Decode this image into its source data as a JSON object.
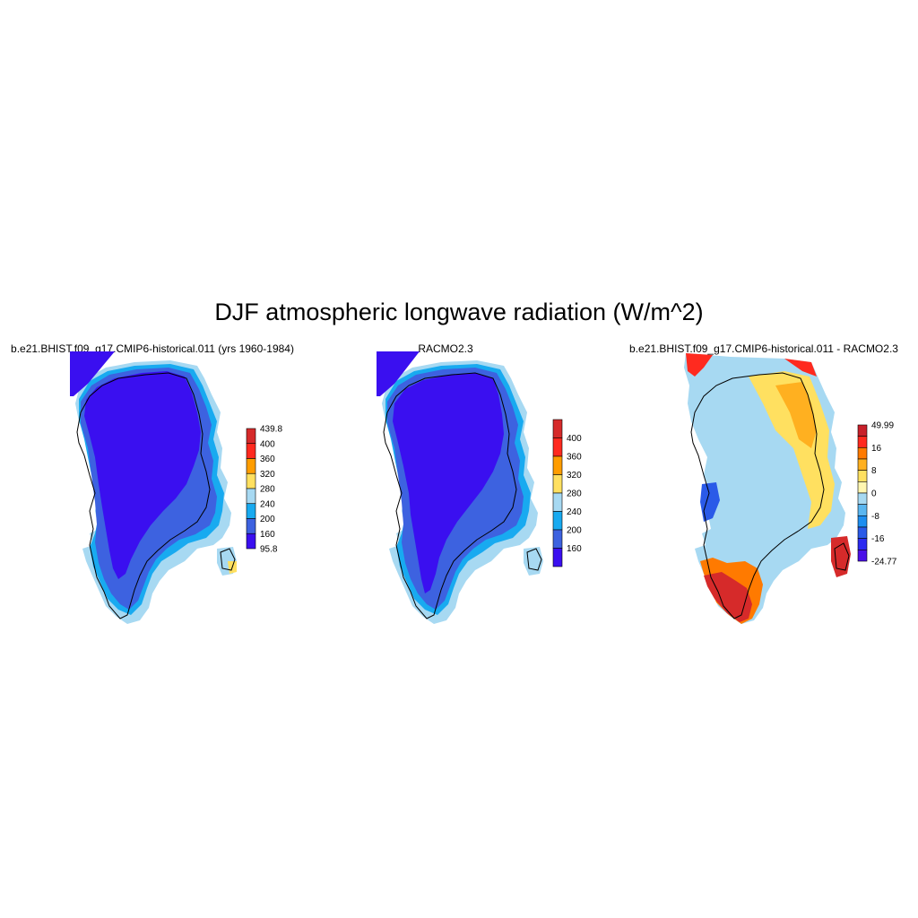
{
  "figure": {
    "title": "DJF atmospheric longwave radiation (W/m^2)",
    "background": "#ffffff"
  },
  "panels": [
    {
      "title": "b.e21.BHIST.f09_g17.CMIP6-historical.011 (yrs 1960-1984)",
      "kind": "model",
      "colorbar": {
        "labels": [
          "439.8",
          "400",
          "360",
          "320",
          "280",
          "240",
          "200",
          "160",
          "95.8"
        ],
        "colors": [
          "#d62a2a",
          "#ff2a1f",
          "#ff9d00",
          "#ffe060",
          "#a7d9f2",
          "#18aaf0",
          "#3d62e0",
          "#3a0ff0"
        ],
        "min_label": "95.8",
        "max_label": "439.8"
      }
    },
    {
      "title": "RACMO2.3",
      "kind": "reference",
      "colorbar": {
        "labels": [
          "400",
          "360",
          "320",
          "280",
          "240",
          "200",
          "160"
        ],
        "colors": [
          "#d62a2a",
          "#ff2a1f",
          "#ff9d00",
          "#ffe060",
          "#a7d9f2",
          "#18aaf0",
          "#3d62e0",
          "#3a0ff0"
        ]
      }
    },
    {
      "title": "b.e21.BHIST.f09_g17.CMIP6-historical.011 - RACMO2.3",
      "kind": "difference",
      "colorbar": {
        "labels": [
          "49.99",
          "16",
          "8",
          "0",
          "-8",
          "-16",
          "-24.77"
        ],
        "colors": [
          "#c8202a",
          "#ff2a1f",
          "#ff7a00",
          "#ffb020",
          "#ffe060",
          "#fff6b0",
          "#a7d9f2",
          "#5ab6f0",
          "#1d8ef0",
          "#2a5ae8",
          "#2a2af0",
          "#4a10e8"
        ],
        "min_label": "-24.77",
        "max_label": "49.99"
      }
    }
  ]
}
